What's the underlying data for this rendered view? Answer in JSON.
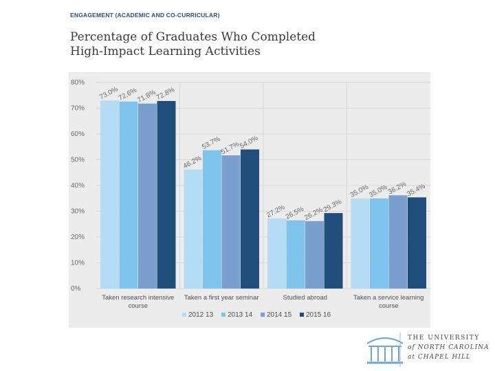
{
  "header": {
    "section_label": "ENGAGEMENT (ACADEMIC AND CO-CURRICULAR)",
    "title_line1": "Percentage of Graduates Who Completed",
    "title_line2": "High-Impact Learning Activities"
  },
  "chart_data": {
    "type": "bar",
    "title": "Percentage of Graduates Who Completed High-Impact Learning Activities",
    "xlabel": "",
    "ylabel": "",
    "ylim": [
      0,
      80
    ],
    "yticks": [
      "0%",
      "10%",
      "20%",
      "30%",
      "40%",
      "50%",
      "60%",
      "70%",
      "80%"
    ],
    "grid": true,
    "legend_position": "bottom",
    "categories": [
      [
        "Taken research intensive",
        "course"
      ],
      [
        "Taken a first year seminar"
      ],
      [
        "Studied abroad"
      ],
      [
        "Taken a service learning",
        "course"
      ]
    ],
    "series": [
      {
        "name": "2012 13",
        "color": "#b5dcf5",
        "values": [
          73.0,
          46.2,
          27.2,
          35.0
        ],
        "labels": [
          "73.0%",
          "46.2%",
          "27.2%",
          "35.0%"
        ]
      },
      {
        "name": "2013 14",
        "color": "#7fc4ec",
        "values": [
          72.6,
          53.7,
          26.5,
          35.0
        ],
        "labels": [
          "72.6%",
          "53.7%",
          "26.5%",
          "35.0%"
        ]
      },
      {
        "name": "2014 15",
        "color": "#7a9fcf",
        "values": [
          71.8,
          51.7,
          26.2,
          36.2
        ],
        "labels": [
          "71.8%",
          "51.7%",
          "26.2%",
          "36.2%"
        ]
      },
      {
        "name": "2015 16",
        "color": "#1f4e7a",
        "values": [
          72.8,
          54.0,
          29.3,
          35.4
        ],
        "labels": [
          "72.8%",
          "54.0%",
          "29.3%",
          "35.4%"
        ]
      }
    ]
  },
  "logo": {
    "line1": "THE UNIVERSITY",
    "line2": "of NORTH CAROLINA",
    "line3": "at CHAPEL HILL"
  }
}
